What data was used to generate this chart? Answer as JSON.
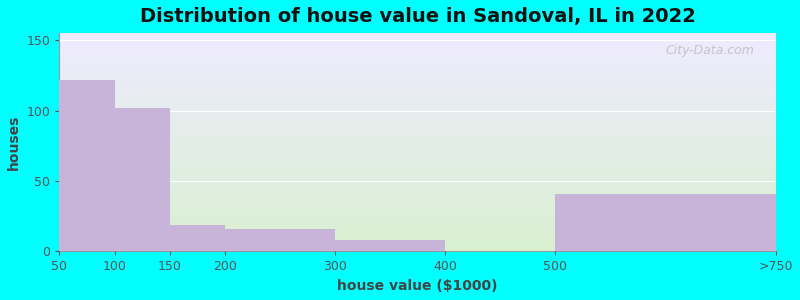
{
  "title": "Distribution of house value in Sandoval, IL in 2022",
  "xlabel": "house value ($1000)",
  "ylabel": "houses",
  "tick_labels": [
    "50",
    "100",
    "150",
    "200",
    "300",
    "400",
    "500",
    ">750"
  ],
  "tick_positions": [
    0,
    1,
    2,
    3,
    5,
    7,
    9,
    13
  ],
  "bar_lefts": [
    0,
    1,
    2,
    3,
    5,
    7,
    9
  ],
  "bar_widths": [
    1,
    1,
    1,
    2,
    2,
    2,
    4
  ],
  "values": [
    122,
    102,
    19,
    16,
    8,
    0,
    41
  ],
  "bar_color": "#c8b4d8",
  "ylim": [
    0,
    155
  ],
  "yticks": [
    0,
    50,
    100,
    150
  ],
  "background_color": "#00ffff",
  "grad_top_color": "#d8f0d0",
  "grad_bottom_color": "#eeeaff",
  "title_fontsize": 14,
  "axis_label_fontsize": 10,
  "tick_fontsize": 9,
  "watermark_text": "City-Data.com"
}
